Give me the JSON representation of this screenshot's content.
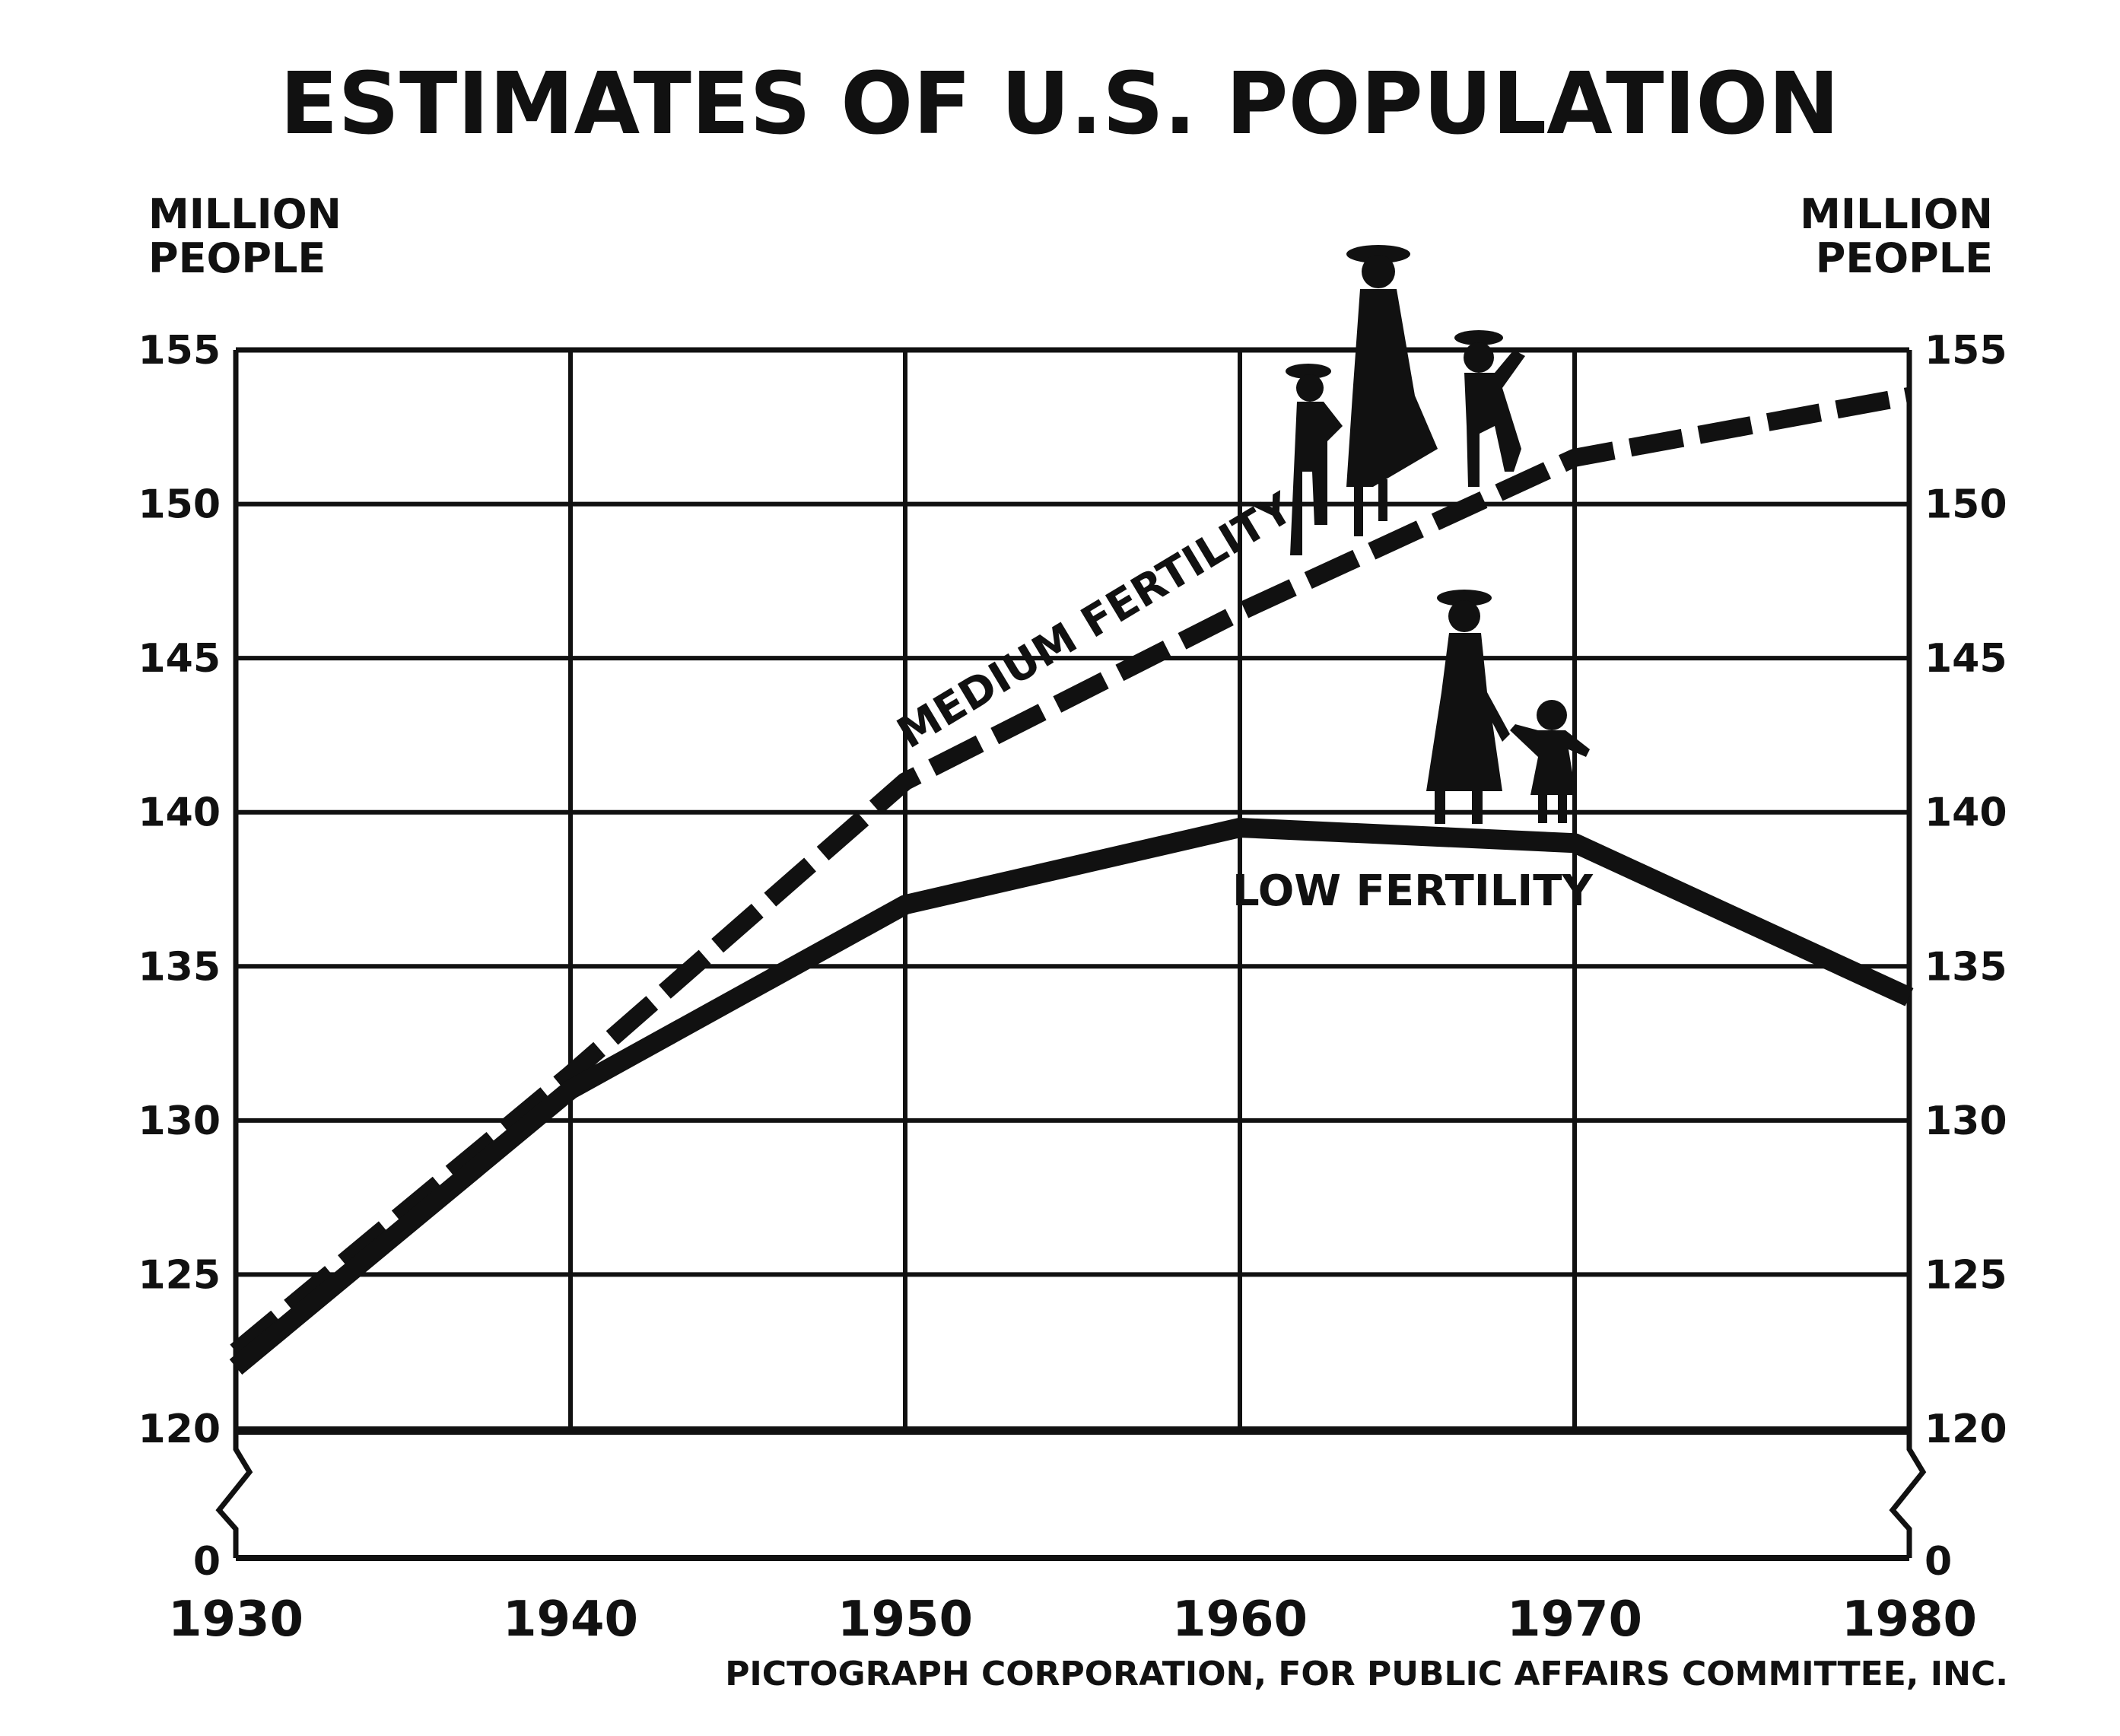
{
  "chart_data": {
    "type": "line",
    "title": "ESTIMATES OF U.S. POPULATION",
    "ylabel_left": [
      "MILLION",
      "PEOPLE"
    ],
    "ylabel_right": [
      "MILLION",
      "PEOPLE"
    ],
    "x": [
      1930,
      1940,
      1950,
      1960,
      1970,
      1980
    ],
    "x_tick_labels": [
      "1930",
      "1940",
      "1950",
      "1960",
      "1970",
      "1980"
    ],
    "y_tick_labels": [
      "0",
      "120",
      "125",
      "130",
      "135",
      "140",
      "145",
      "150",
      "155"
    ],
    "xlim": [
      1930,
      1980
    ],
    "ylim": [
      120,
      155
    ],
    "axis_break": "between 0 and 120",
    "grid": true,
    "series": [
      {
        "name": "MEDIUM FERTILITY",
        "style": "dashed",
        "x": [
          1930,
          1940,
          1950,
          1960,
          1970,
          1980
        ],
        "values": [
          122.5,
          131.5,
          141.0,
          146.5,
          151.5,
          153.5
        ]
      },
      {
        "name": "LOW FERTILITY",
        "style": "solid",
        "x": [
          1930,
          1940,
          1950,
          1960,
          1970,
          1980
        ],
        "values": [
          122.0,
          131.0,
          137.0,
          139.5,
          139.0,
          134.0
        ]
      }
    ],
    "source": "PICTOGRAPH CORPORATION, FOR PUBLIC AFFAIRS COMMITTEE, INC.",
    "colors": {
      "ink": "#111111",
      "background": "#ffffff"
    }
  }
}
